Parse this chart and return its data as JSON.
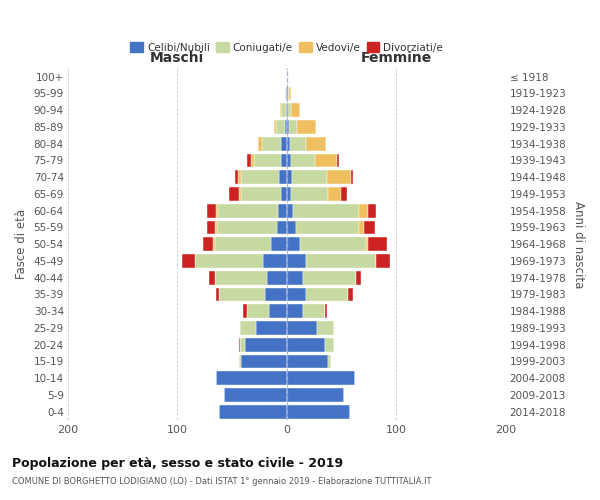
{
  "age_groups": [
    "0-4",
    "5-9",
    "10-14",
    "15-19",
    "20-24",
    "25-29",
    "30-34",
    "35-39",
    "40-44",
    "45-49",
    "50-54",
    "55-59",
    "60-64",
    "65-69",
    "70-74",
    "75-79",
    "80-84",
    "85-89",
    "90-94",
    "95-99",
    "100+"
  ],
  "birth_years": [
    "2014-2018",
    "2009-2013",
    "2004-2008",
    "1999-2003",
    "1994-1998",
    "1989-1993",
    "1984-1988",
    "1979-1983",
    "1974-1978",
    "1969-1973",
    "1964-1968",
    "1959-1963",
    "1954-1958",
    "1949-1953",
    "1944-1948",
    "1939-1943",
    "1934-1938",
    "1929-1933",
    "1924-1928",
    "1919-1923",
    "≤ 1918"
  ],
  "maschi": {
    "celibi": [
      62,
      57,
      65,
      42,
      38,
      28,
      16,
      20,
      18,
      22,
      14,
      9,
      8,
      5,
      7,
      5,
      5,
      2,
      1,
      1,
      0
    ],
    "coniugati": [
      0,
      0,
      0,
      2,
      5,
      15,
      20,
      42,
      48,
      62,
      52,
      55,
      55,
      37,
      35,
      25,
      18,
      8,
      4,
      1,
      0
    ],
    "vedovi": [
      0,
      0,
      0,
      0,
      0,
      0,
      0,
      0,
      0,
      0,
      1,
      2,
      2,
      2,
      3,
      3,
      3,
      2,
      1,
      0,
      0
    ],
    "divorziati": [
      0,
      0,
      0,
      0,
      1,
      0,
      4,
      3,
      5,
      12,
      10,
      7,
      8,
      9,
      2,
      3,
      0,
      0,
      0,
      0,
      0
    ]
  },
  "femmine": {
    "nubili": [
      58,
      52,
      62,
      38,
      35,
      28,
      15,
      18,
      15,
      18,
      12,
      8,
      6,
      4,
      5,
      4,
      3,
      2,
      1,
      1,
      0
    ],
    "coniugate": [
      0,
      0,
      0,
      2,
      8,
      15,
      20,
      38,
      48,
      64,
      60,
      58,
      60,
      34,
      32,
      22,
      15,
      7,
      3,
      1,
      0
    ],
    "vedove": [
      0,
      0,
      0,
      0,
      0,
      0,
      0,
      0,
      0,
      0,
      2,
      5,
      8,
      12,
      22,
      20,
      18,
      18,
      8,
      2,
      0
    ],
    "divorziate": [
      0,
      0,
      0,
      0,
      0,
      0,
      2,
      5,
      5,
      12,
      18,
      10,
      8,
      5,
      2,
      2,
      0,
      0,
      0,
      0,
      0
    ]
  },
  "colors": {
    "celibi": "#4472C4",
    "coniugati": "#c5d9a0",
    "vedovi": "#F0C060",
    "divorziati": "#CC2222"
  },
  "title": "Popolazione per età, sesso e stato civile - 2019",
  "subtitle": "COMUNE DI BORGHETTO LODIGIANO (LO) - Dati ISTAT 1° gennaio 2019 - Elaborazione TUTTITALIA.IT",
  "xlabel_left": "Maschi",
  "xlabel_right": "Femmine",
  "ylabel_left": "Fasce di età",
  "ylabel_right": "Anni di nascita",
  "xlim": 200,
  "background_color": "#ffffff",
  "grid_color": "#cccccc"
}
